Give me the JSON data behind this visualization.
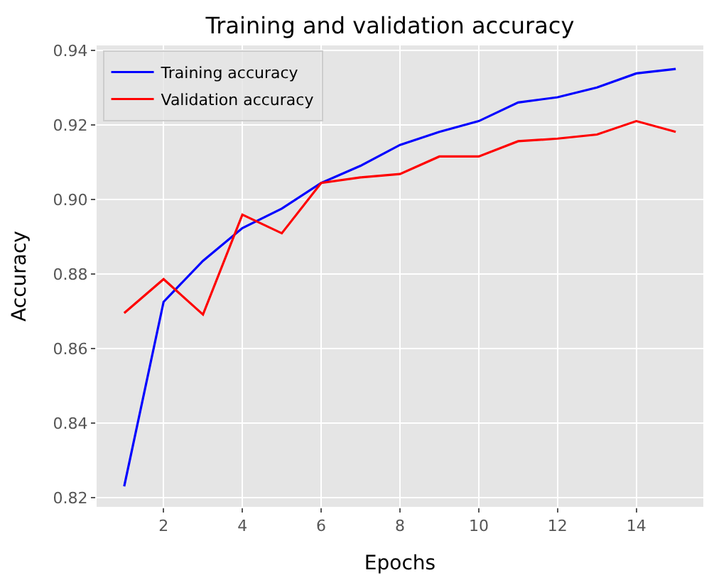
{
  "chart_data": {
    "type": "line",
    "title": "Training and validation accuracy",
    "xlabel": "Epochs",
    "ylabel": "Accuracy",
    "x": [
      1,
      2,
      3,
      4,
      5,
      6,
      7,
      8,
      9,
      10,
      11,
      12,
      13,
      14,
      15
    ],
    "series": [
      {
        "name": "Training accuracy",
        "color": "#0000ff",
        "values": [
          0.823,
          0.8725,
          0.8835,
          0.8923,
          0.8975,
          0.9044,
          0.909,
          0.9146,
          0.9181,
          0.921,
          0.926,
          0.9274,
          0.93,
          0.9338,
          0.935
        ]
      },
      {
        "name": "Validation accuracy",
        "color": "#ff0000",
        "values": [
          0.8695,
          0.8786,
          0.8691,
          0.8959,
          0.8909,
          0.9044,
          0.9059,
          0.9068,
          0.9115,
          0.9115,
          0.9156,
          0.9163,
          0.9174,
          0.921,
          0.9181
        ]
      }
    ],
    "xlim": [
      0.3,
      15.7
    ],
    "xticks": [
      2,
      4,
      6,
      8,
      10,
      12,
      14
    ],
    "ylim": [
      0.8175,
      0.9413
    ],
    "yticks": [
      {
        "value": 0.82,
        "label": "0.82"
      },
      {
        "value": 0.84,
        "label": "0.84"
      },
      {
        "value": 0.86,
        "label": "0.86"
      },
      {
        "value": 0.88,
        "label": "0.88"
      },
      {
        "value": 0.9,
        "label": "0.90"
      },
      {
        "value": 0.92,
        "label": "0.92"
      },
      {
        "value": 0.94,
        "label": "0.94"
      }
    ],
    "grid": true,
    "legend": "top left",
    "marker": "none",
    "line_style": "solid"
  }
}
